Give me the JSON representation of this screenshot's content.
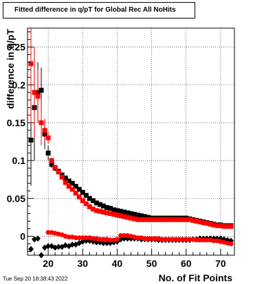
{
  "header": {
    "title": "Fitted difference in q/pT for Global Rec All NoHits",
    "timestamp": "Tue Sep 20 18:38:43 2022"
  },
  "chart_data": {
    "type": "scatter",
    "title": "Fitted difference in q/pT for Global Rec All NoHits",
    "xlabel": "No. of Fit Points",
    "ylabel": "difference in q/pT",
    "xlim": [
      14,
      74
    ],
    "ylim": [
      -0.025,
      0.275
    ],
    "grid": true,
    "x_ticks": [
      20,
      30,
      40,
      50,
      60,
      70
    ],
    "x_tick_labels": [
      "20",
      "30",
      "40",
      "50",
      "60",
      "70"
    ],
    "y_ticks": [
      0,
      0.05,
      0.1,
      0.15,
      0.2,
      0.25
    ],
    "y_tick_labels": [
      "0",
      "0.05",
      "0.1",
      "0.15",
      "0.2",
      "0.25"
    ],
    "series": [
      {
        "marker": "square",
        "color": "#000000",
        "x": [
          15,
          16,
          17,
          18,
          19,
          20,
          21,
          22,
          23,
          24,
          25,
          26,
          27,
          28,
          29,
          30,
          31,
          32,
          33,
          34,
          35,
          36,
          37,
          38,
          39,
          40,
          41,
          42,
          43,
          44,
          45,
          46,
          47,
          48,
          49,
          50,
          51,
          52,
          53,
          54,
          55,
          56,
          57,
          58,
          59,
          60,
          61,
          62,
          63,
          64,
          65,
          66,
          67,
          68,
          69,
          70,
          71,
          72,
          73
        ],
        "y": [
          0.127,
          0.17,
          0.19,
          0.193,
          0.135,
          0.11,
          0.095,
          0.09,
          0.086,
          0.081,
          0.077,
          0.073,
          0.07,
          0.066,
          0.062,
          0.058,
          0.054,
          0.05,
          0.047,
          0.044,
          0.042,
          0.04,
          0.038,
          0.037,
          0.035,
          0.034,
          0.033,
          0.032,
          0.031,
          0.03,
          0.029,
          0.028,
          0.027,
          0.026,
          0.025,
          0.024,
          0.024,
          0.024,
          0.024,
          0.024,
          0.024,
          0.024,
          0.024,
          0.024,
          0.024,
          0.024,
          0.023,
          0.022,
          0.021,
          0.02,
          0.019,
          0.018,
          0.017,
          0.016,
          0.015,
          0.015,
          0.014,
          0.014,
          0.014
        ],
        "err": [
          0.06,
          0.07,
          0.04,
          0.03,
          0.02,
          0.01,
          0.005,
          0.004,
          0.003,
          0.003,
          0.002,
          0.002,
          0.002,
          0.002,
          0.002,
          0.001,
          0.001,
          0.001,
          0.001,
          0.001,
          0.001,
          0.001,
          0.001,
          0.001,
          0.001,
          0.001,
          0.001,
          0.001,
          0.001,
          0.001,
          0.001,
          0.001,
          0.001,
          0.001,
          0.001,
          0.001,
          0.001,
          0.001,
          0.001,
          0.001,
          0.001,
          0.001,
          0.001,
          0.001,
          0.001,
          0.001,
          0.001,
          0.001,
          0.001,
          0.001,
          0.001,
          0.001,
          0.001,
          0.001,
          0.001,
          0.001,
          0.001,
          0.001,
          0.001
        ]
      },
      {
        "marker": "square",
        "color": "#ff0000",
        "x": [
          15,
          16,
          17,
          18,
          19,
          20,
          21,
          22,
          23,
          24,
          25,
          26,
          27,
          28,
          29,
          30,
          31,
          32,
          33,
          34,
          35,
          36,
          37,
          38,
          39,
          40,
          41,
          42,
          43,
          44,
          45,
          46,
          47,
          48,
          49,
          50,
          51,
          52,
          53,
          54,
          55,
          56,
          57,
          58,
          59,
          60,
          61,
          62,
          63,
          64,
          65,
          66,
          67,
          68,
          69,
          70,
          71,
          72,
          73
        ],
        "y": [
          0.228,
          0.19,
          0.185,
          0.15,
          0.14,
          0.13,
          0.1,
          0.091,
          0.085,
          0.078,
          0.071,
          0.066,
          0.062,
          0.057,
          0.052,
          0.047,
          0.043,
          0.039,
          0.036,
          0.034,
          0.033,
          0.032,
          0.031,
          0.03,
          0.029,
          0.028,
          0.027,
          0.026,
          0.025,
          0.024,
          0.023,
          0.022,
          0.022,
          0.022,
          0.022,
          0.022,
          0.022,
          0.022,
          0.022,
          0.022,
          0.022,
          0.022,
          0.022,
          0.022,
          0.022,
          0.022,
          0.022,
          0.021,
          0.02,
          0.019,
          0.018,
          0.017,
          0.016,
          0.015,
          0.014,
          0.014,
          0.013,
          0.013,
          0.013
        ],
        "err": [
          0.08,
          0.06,
          0.035,
          0.03,
          0.015,
          0.008,
          0.004,
          0.003,
          0.003,
          0.002,
          0.002,
          0.002,
          0.002,
          0.002,
          0.001,
          0.001,
          0.001,
          0.001,
          0.001,
          0.001,
          0.001,
          0.001,
          0.001,
          0.001,
          0.001,
          0.001,
          0.001,
          0.001,
          0.001,
          0.001,
          0.001,
          0.001,
          0.001,
          0.001,
          0.001,
          0.001,
          0.001,
          0.001,
          0.001,
          0.001,
          0.001,
          0.001,
          0.001,
          0.001,
          0.001,
          0.001,
          0.001,
          0.001,
          0.001,
          0.001,
          0.001,
          0.001,
          0.001,
          0.001,
          0.001,
          0.001,
          0.001,
          0.001,
          0.001
        ]
      },
      {
        "marker": "diamond",
        "color": "#000000",
        "x": [
          15,
          16,
          17,
          18,
          19,
          20,
          21,
          22,
          23,
          24,
          25,
          26,
          27,
          28,
          29,
          30,
          31,
          32,
          33,
          34,
          35,
          36,
          37,
          38,
          39,
          40,
          41,
          42,
          43,
          44,
          45,
          46,
          47,
          48,
          49,
          50,
          51,
          52,
          53,
          54,
          55,
          56,
          57,
          58,
          59,
          60,
          61,
          62,
          63,
          64,
          65,
          66,
          67,
          68,
          69,
          70,
          71,
          72,
          73
        ],
        "y": [
          -0.017,
          -0.004,
          -0.003,
          -0.025,
          -0.015,
          -0.013,
          -0.013,
          -0.015,
          -0.014,
          -0.014,
          -0.012,
          -0.013,
          -0.011,
          -0.011,
          -0.009,
          -0.007,
          -0.006,
          -0.006,
          -0.007,
          -0.008,
          -0.008,
          -0.009,
          -0.009,
          -0.009,
          -0.008,
          -0.007,
          -0.004,
          -0.003,
          -0.003,
          -0.003,
          -0.003,
          -0.003,
          -0.004,
          -0.004,
          -0.004,
          -0.004,
          -0.004,
          -0.005,
          -0.005,
          -0.005,
          -0.005,
          -0.005,
          -0.005,
          -0.005,
          -0.005,
          -0.005,
          -0.005,
          -0.004,
          -0.004,
          -0.003,
          -0.003,
          -0.003,
          -0.003,
          -0.003,
          -0.003,
          -0.003,
          -0.004,
          -0.005,
          -0.006
        ],
        "err": [
          0.004,
          0.003,
          0.003,
          0.003,
          0.003,
          0.002,
          0.002,
          0.002,
          0.002,
          0.002,
          0.002,
          0.002,
          0.002,
          0.002,
          0.001,
          0.001,
          0.001,
          0.001,
          0.001,
          0.001,
          0.001,
          0.001,
          0.001,
          0.001,
          0.001,
          0.001,
          0.001,
          0.001,
          0.001,
          0.001,
          0.001,
          0.001,
          0.001,
          0.001,
          0.001,
          0.001,
          0.001,
          0.001,
          0.001,
          0.001,
          0.001,
          0.001,
          0.001,
          0.001,
          0.001,
          0.001,
          0.001,
          0.001,
          0.001,
          0.001,
          0.001,
          0.001,
          0.001,
          0.001,
          0.001,
          0.001,
          0.001,
          0.001,
          0.001
        ]
      },
      {
        "marker": "circle",
        "color": "#ff0000",
        "x": [
          20,
          21,
          22,
          23,
          24,
          25,
          26,
          27,
          28,
          29,
          30,
          31,
          32,
          33,
          34,
          35,
          36,
          37,
          38,
          39,
          40,
          41,
          42,
          43,
          44,
          45,
          46,
          47,
          48,
          49,
          50,
          51,
          52,
          53,
          54,
          55,
          56,
          57,
          58,
          59,
          60,
          61,
          62,
          63,
          64,
          65,
          66,
          67,
          68,
          69,
          70,
          71,
          72,
          73
        ],
        "y": [
          0.005,
          0.005,
          0.004,
          0.003,
          0.002,
          0.0,
          -0.001,
          -0.001,
          -0.002,
          -0.002,
          -0.002,
          -0.002,
          -0.002,
          -0.003,
          -0.003,
          -0.004,
          -0.004,
          -0.004,
          -0.005,
          -0.005,
          -0.004,
          0.001,
          0.001,
          0.001,
          0.0,
          -0.001,
          -0.002,
          -0.002,
          -0.003,
          -0.003,
          -0.003,
          -0.003,
          -0.003,
          -0.004,
          -0.004,
          -0.004,
          -0.004,
          -0.004,
          -0.004,
          -0.004,
          -0.004,
          -0.004,
          -0.004,
          -0.005,
          -0.005,
          -0.005,
          -0.005,
          -0.005,
          -0.006,
          -0.006,
          -0.007,
          -0.008,
          -0.009,
          -0.01
        ],
        "err": [
          0.002,
          0.002,
          0.002,
          0.001,
          0.001,
          0.001,
          0.001,
          0.001,
          0.001,
          0.001,
          0.001,
          0.001,
          0.001,
          0.001,
          0.001,
          0.001,
          0.001,
          0.001,
          0.001,
          0.001,
          0.001,
          0.001,
          0.001,
          0.001,
          0.001,
          0.001,
          0.001,
          0.001,
          0.001,
          0.001,
          0.001,
          0.001,
          0.001,
          0.001,
          0.001,
          0.001,
          0.001,
          0.001,
          0.001,
          0.001,
          0.001,
          0.001,
          0.001,
          0.001,
          0.001,
          0.001,
          0.001,
          0.001,
          0.001,
          0.001,
          0.001,
          0.001,
          0.001,
          0.001
        ]
      }
    ]
  }
}
